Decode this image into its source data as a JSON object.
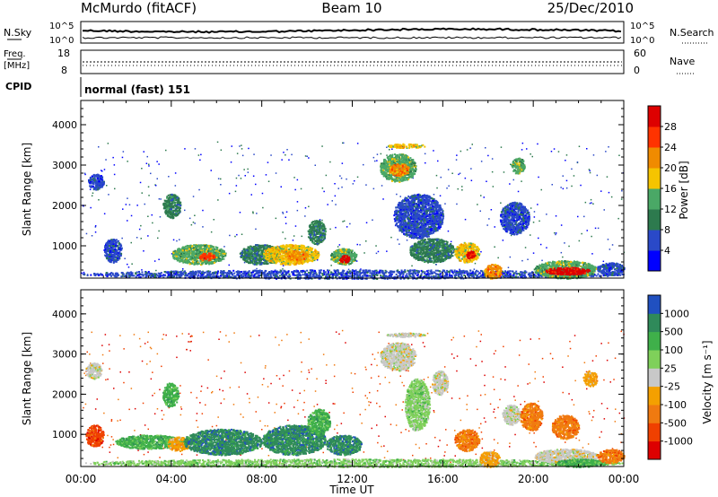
{
  "header": {
    "station": "McMurdo (fitACF)",
    "beam": "Beam 10",
    "date": "25/Dec/2010"
  },
  "noise_panel": {
    "left_label": "N.Sky",
    "right_label": "N.Search",
    "left_ticks": [
      "10^5",
      "10^0"
    ],
    "right_ticks": [
      "10^5",
      "10^0"
    ]
  },
  "freq_panel": {
    "left_label_line1": "Freq.",
    "left_label_line2": "[MHz]",
    "right_label": "Nave",
    "left_ticks": [
      "18",
      "8"
    ],
    "right_ticks": [
      "60",
      "0"
    ]
  },
  "cpid_panel": {
    "label": "CPID",
    "value": "normal (fast) 151"
  },
  "chart_data": [
    {
      "type": "heatmap",
      "title": "",
      "ylabel": "Slant Range [km]",
      "xlabel": "",
      "x_ticks": [
        "00:00",
        "04:00",
        "08:00",
        "12:00",
        "16:00",
        "20:00",
        "00:00"
      ],
      "xlim_hours": [
        0,
        24
      ],
      "ylim": [
        200,
        4600
      ],
      "y_ticks": [
        1000,
        2000,
        3000,
        4000
      ],
      "colorbar": {
        "label": "Power [dB]",
        "ticks": [
          "28",
          "24",
          "20",
          "16",
          "12",
          "8",
          "4"
        ],
        "colors": [
          "#0000ff",
          "#2a49c8",
          "#2d7a4e",
          "#4aa866",
          "#f5c400",
          "#f08b00",
          "#ff3300",
          "#dd0000"
        ]
      },
      "regions": [
        {
          "t0": 0.0,
          "t1": 24.0,
          "r0": 200,
          "r1": 420,
          "level": 1
        },
        {
          "t0": 0.3,
          "t1": 1.0,
          "r0": 2400,
          "r1": 2800,
          "level": 1
        },
        {
          "t0": 1.0,
          "t1": 1.8,
          "r0": 600,
          "r1": 1200,
          "level": 1
        },
        {
          "t0": 3.6,
          "t1": 4.4,
          "r0": 1700,
          "r1": 2300,
          "level": 2
        },
        {
          "t0": 4.0,
          "t1": 6.4,
          "r0": 550,
          "r1": 1050,
          "level": 3
        },
        {
          "t0": 5.2,
          "t1": 5.9,
          "r0": 650,
          "r1": 850,
          "level": 6
        },
        {
          "t0": 7.0,
          "t1": 8.8,
          "r0": 550,
          "r1": 1050,
          "level": 2
        },
        {
          "t0": 8.0,
          "t1": 10.5,
          "r0": 550,
          "r1": 1050,
          "level": 4
        },
        {
          "t0": 9.0,
          "t1": 10.0,
          "r0": 650,
          "r1": 900,
          "level": 5
        },
        {
          "t0": 10.0,
          "t1": 10.8,
          "r0": 1050,
          "r1": 1650,
          "level": 2
        },
        {
          "t0": 11.0,
          "t1": 12.2,
          "r0": 550,
          "r1": 950,
          "level": 3
        },
        {
          "t0": 11.4,
          "t1": 11.9,
          "r0": 600,
          "r1": 780,
          "level": 7
        },
        {
          "t0": 13.2,
          "t1": 14.8,
          "r0": 2600,
          "r1": 3300,
          "level": 3
        },
        {
          "t0": 13.6,
          "t1": 14.5,
          "r0": 2750,
          "r1": 3050,
          "level": 5
        },
        {
          "t0": 13.5,
          "t1": 15.2,
          "r0": 3440,
          "r1": 3540,
          "level": 4
        },
        {
          "t0": 13.8,
          "t1": 16.0,
          "r0": 1200,
          "r1": 2300,
          "level": 1
        },
        {
          "t0": 14.5,
          "t1": 16.5,
          "r0": 600,
          "r1": 1200,
          "level": 2
        },
        {
          "t0": 16.5,
          "t1": 17.6,
          "r0": 600,
          "r1": 1100,
          "level": 4
        },
        {
          "t0": 17.0,
          "t1": 17.4,
          "r0": 700,
          "r1": 900,
          "level": 7
        },
        {
          "t0": 17.8,
          "t1": 18.6,
          "r0": 200,
          "r1": 560,
          "level": 5
        },
        {
          "t0": 18.5,
          "t1": 19.8,
          "r0": 1300,
          "r1": 2100,
          "level": 1
        },
        {
          "t0": 19.0,
          "t1": 19.6,
          "r0": 2800,
          "r1": 3200,
          "level": 3
        },
        {
          "t0": 20.0,
          "t1": 22.8,
          "r0": 200,
          "r1": 650,
          "level": 3
        },
        {
          "t0": 20.5,
          "t1": 22.5,
          "r0": 300,
          "r1": 480,
          "level": 7
        },
        {
          "t0": 22.8,
          "t1": 24.0,
          "r0": 300,
          "r1": 600,
          "level": 1
        }
      ]
    },
    {
      "type": "heatmap",
      "title": "",
      "ylabel": "Slant Range [km]",
      "xlabel": "Time UT",
      "x_ticks": [
        "00:00",
        "04:00",
        "08:00",
        "12:00",
        "16:00",
        "20:00",
        "00:00"
      ],
      "xlim_hours": [
        0,
        24
      ],
      "ylim": [
        200,
        4600
      ],
      "y_ticks": [
        1000,
        2000,
        3000,
        4000
      ],
      "colorbar": {
        "label": "Velocity [m s⁻¹]",
        "ticks": [
          "1000",
          "500",
          "100",
          "25",
          "-25",
          "-100",
          "-500",
          "-1000"
        ],
        "colors": [
          "#dd0000",
          "#f04000",
          "#f07a10",
          "#f4a000",
          "#c8c8c8",
          "#7fd05a",
          "#3fb04a",
          "#2f8a5a",
          "#2050c0"
        ]
      },
      "regions": [
        {
          "t0": 0.0,
          "t1": 24.0,
          "r0": 200,
          "r1": 400,
          "level": 5
        },
        {
          "t0": 0.2,
          "t1": 1.0,
          "r0": 700,
          "r1": 1250,
          "level": 1
        },
        {
          "t0": 0.2,
          "t1": 0.9,
          "r0": 2400,
          "r1": 2800,
          "level": 4
        },
        {
          "t0": 3.6,
          "t1": 4.3,
          "r0": 1700,
          "r1": 2300,
          "level": 6
        },
        {
          "t0": 1.5,
          "t1": 4.5,
          "r0": 650,
          "r1": 1000,
          "level": 6
        },
        {
          "t0": 3.8,
          "t1": 4.8,
          "r0": 600,
          "r1": 950,
          "level": 3
        },
        {
          "t0": 4.5,
          "t1": 8.0,
          "r0": 500,
          "r1": 1150,
          "level": 7
        },
        {
          "t0": 8.0,
          "t1": 10.8,
          "r0": 500,
          "r1": 1250,
          "level": 7
        },
        {
          "t0": 10.0,
          "t1": 11.0,
          "r0": 1000,
          "r1": 1650,
          "level": 6
        },
        {
          "t0": 10.8,
          "t1": 12.4,
          "r0": 500,
          "r1": 1000,
          "level": 7
        },
        {
          "t0": 13.2,
          "t1": 14.8,
          "r0": 2600,
          "r1": 3300,
          "level": 4
        },
        {
          "t0": 13.5,
          "t1": 15.2,
          "r0": 3440,
          "r1": 3540,
          "level": 4
        },
        {
          "t0": 14.3,
          "t1": 15.4,
          "r0": 1100,
          "r1": 2400,
          "level": 5
        },
        {
          "t0": 15.5,
          "t1": 16.2,
          "r0": 2000,
          "r1": 2600,
          "level": 4
        },
        {
          "t0": 16.5,
          "t1": 17.6,
          "r0": 600,
          "r1": 1150,
          "level": 2
        },
        {
          "t0": 17.6,
          "t1": 18.5,
          "r0": 200,
          "r1": 600,
          "level": 3
        },
        {
          "t0": 18.6,
          "t1": 19.4,
          "r0": 1250,
          "r1": 1750,
          "level": 4
        },
        {
          "t0": 19.4,
          "t1": 20.4,
          "r0": 1100,
          "r1": 1800,
          "level": 2
        },
        {
          "t0": 20.8,
          "t1": 22.0,
          "r0": 900,
          "r1": 1500,
          "level": 2
        },
        {
          "t0": 22.2,
          "t1": 22.8,
          "r0": 2200,
          "r1": 2600,
          "level": 3
        },
        {
          "t0": 20.0,
          "t1": 22.8,
          "r0": 300,
          "r1": 650,
          "level": 4
        },
        {
          "t0": 21.0,
          "t1": 23.2,
          "r0": 200,
          "r1": 400,
          "level": 6
        },
        {
          "t0": 22.8,
          "t1": 24.0,
          "r0": 300,
          "r1": 650,
          "level": 2
        }
      ]
    }
  ]
}
